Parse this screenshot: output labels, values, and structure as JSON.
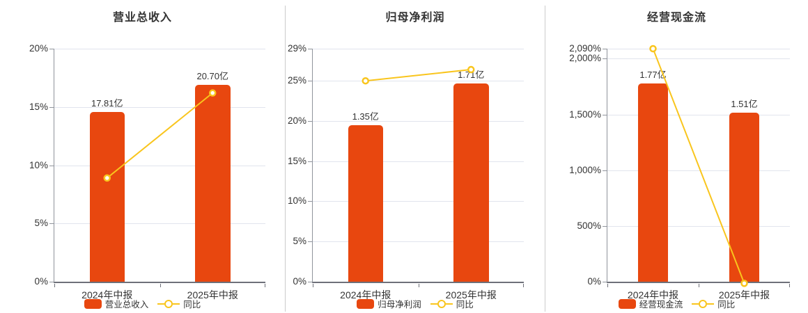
{
  "colors": {
    "bar": "#e8470f",
    "line": "#f9c51d",
    "marker_fill": "#ffffff",
    "grid": "#e1e4ed",
    "x_axis": "#6e7079",
    "y_axis": "#8f939b",
    "divider": "#cccccc",
    "text": "#333333",
    "background": "#ffffff"
  },
  "chart_data": [
    {
      "type": "bar",
      "title": "营业总收入",
      "categories": [
        "2024年中报",
        "2025年中报"
      ],
      "series": [
        {
          "name": "营业总收入",
          "type": "bar",
          "unit": "亿",
          "values": [
            17.81,
            20.7
          ],
          "data_labels": [
            "17.81亿",
            "20.70亿"
          ]
        },
        {
          "name": "同比",
          "type": "line",
          "unit": "%",
          "values": [
            8.9,
            16.2
          ]
        }
      ],
      "yaxis": {
        "min": 0,
        "max": 20,
        "tick_values": [
          0,
          5,
          10,
          15,
          20
        ],
        "tick_labels": [
          "0%",
          "5%",
          "10%",
          "15%",
          "20%"
        ]
      },
      "bar_scale_max": 24.5,
      "legend": [
        "营业总收入",
        "同比"
      ],
      "legend_position": "bottom",
      "grid": true
    },
    {
      "type": "bar",
      "title": "归母净利润",
      "categories": [
        "2024年中报",
        "2025年中报"
      ],
      "series": [
        {
          "name": "归母净利润",
          "type": "bar",
          "unit": "亿",
          "values": [
            1.35,
            1.71
          ],
          "data_labels": [
            "1.35亿",
            "1.71亿"
          ]
        },
        {
          "name": "同比",
          "type": "line",
          "unit": "%",
          "values": [
            25.0,
            26.4
          ]
        }
      ],
      "yaxis": {
        "min": 0,
        "max": 29,
        "tick_values": [
          0,
          5,
          10,
          15,
          20,
          25,
          29
        ],
        "tick_labels": [
          "0%",
          "5%",
          "10%",
          "15%",
          "20%",
          "25%",
          "29%"
        ]
      },
      "bar_scale_max": 2.01,
      "legend": [
        "归母净利润",
        "同比"
      ],
      "legend_position": "bottom",
      "grid": true
    },
    {
      "type": "bar",
      "title": "经营现金流",
      "categories": [
        "2024年中报",
        "2025年中报"
      ],
      "series": [
        {
          "name": "经营现金流",
          "type": "bar",
          "unit": "亿",
          "values": [
            1.77,
            1.51
          ],
          "data_labels": [
            "1.77亿",
            "1.51亿"
          ]
        },
        {
          "name": "同比",
          "type": "line",
          "unit": "%",
          "values": [
            2090,
            -14.7
          ]
        }
      ],
      "yaxis": {
        "min": 0,
        "max": 2090,
        "tick_values": [
          0,
          500,
          1000,
          1500,
          2000,
          2090
        ],
        "tick_labels": [
          "0%",
          "500%",
          "1,000%",
          "1,500%",
          "2,000%",
          "2,090%"
        ]
      },
      "bar_scale_max": 2.08,
      "legend": [
        "经营现金流",
        "同比"
      ],
      "legend_position": "bottom",
      "grid": true
    }
  ]
}
